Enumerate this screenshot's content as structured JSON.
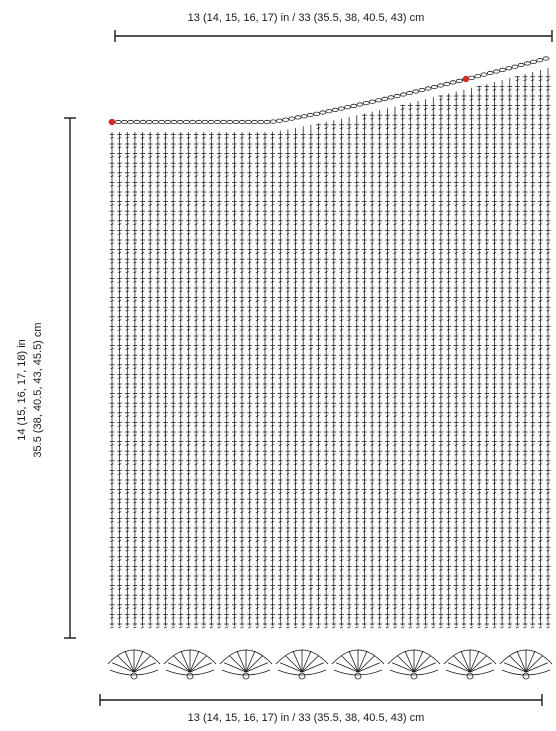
{
  "dimensions": {
    "top_width_label": "13 (14, 15, 16, 17) in / 33 (35.5, 38, 40.5, 43) cm",
    "bottom_width_label": "13 (14, 15, 16, 17) in / 33 (35.5, 38, 40.5, 43) cm",
    "height_label_line1": "14 (15, 16, 17, 18) in",
    "height_label_line2": "35.5 (38, 40.5, 43, 45.5) cm"
  },
  "colors": {
    "ink": "#1a1a1a",
    "marker": "#d42a2a",
    "background": "#ffffff"
  }
}
